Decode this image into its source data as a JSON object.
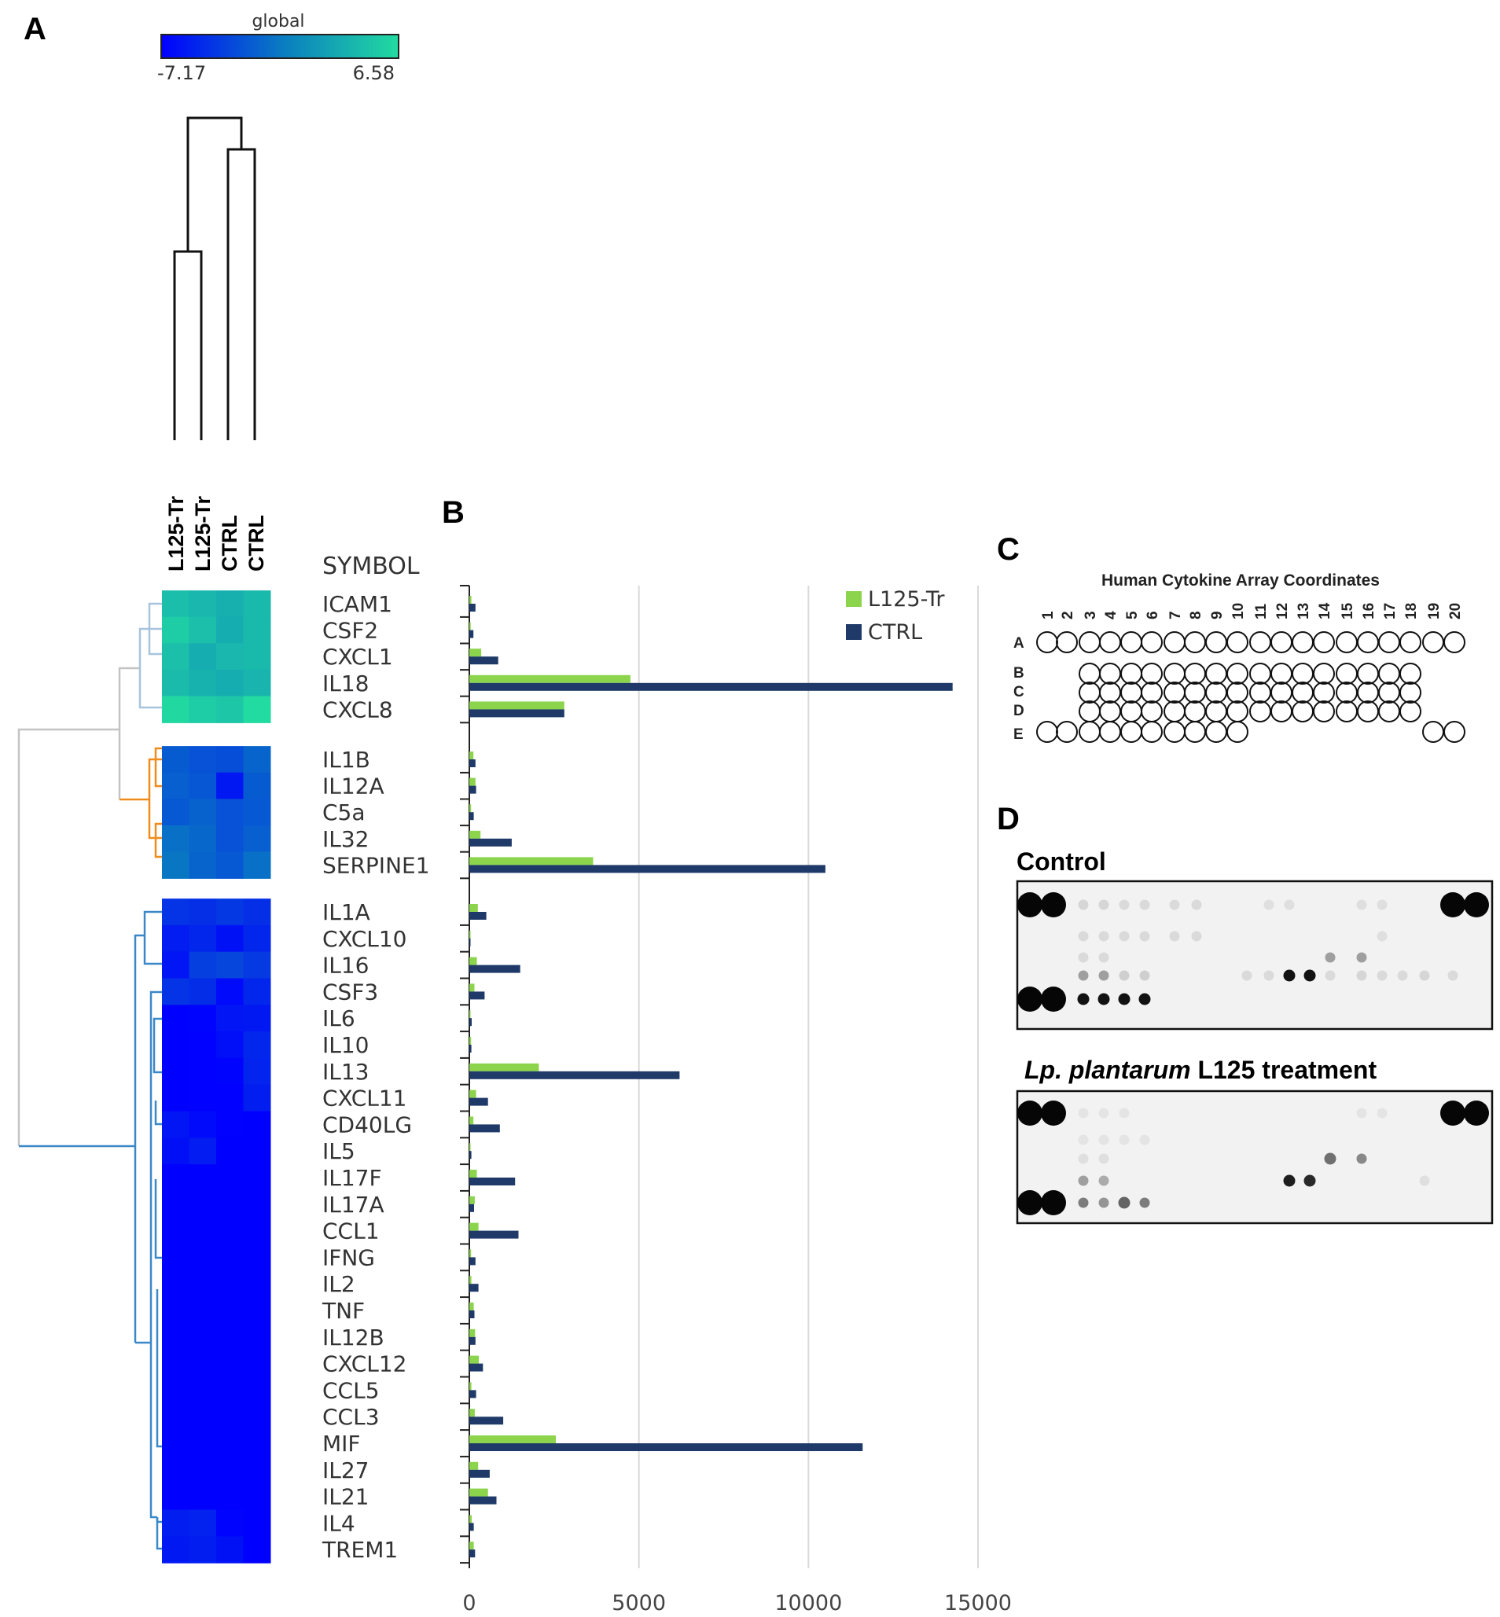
{
  "panels": {
    "A": "A",
    "B": "B",
    "C": "C",
    "D": "D"
  },
  "colors": {
    "low": "#0000ff",
    "mid": "#0a7ec0",
    "high": "#22dba0",
    "l125": "#8bd44b",
    "ctrl": "#1f3a68",
    "dendro_grey": "#c4c4c4",
    "dendro_lightblue": "#a8c4dc",
    "dendro_orange": "#f08c1c",
    "dendro_blue": "#3a88c8"
  },
  "heatmap": {
    "scale_title": "global",
    "scale_min": "-7.17",
    "scale_max": "6.58",
    "column_labels": [
      "L125-Tr",
      "L125-Tr",
      "CTRL",
      "CTRL"
    ],
    "symbol_header": "SYMBOL",
    "genes": [
      "ICAM1",
      "CSF2",
      "CXCL1",
      "IL18",
      "CXCL8",
      "IL1B",
      "IL12A",
      "C5a",
      "IL32",
      "SERPINE1",
      "IL1A",
      "CXCL10",
      "IL16",
      "CSF3",
      "IL6",
      "IL10",
      "IL13",
      "CXCL11",
      "CD40LG",
      "IL5",
      "IL17F",
      "IL17A",
      "CCL1",
      "IFNG",
      "IL2",
      "TNF",
      "IL12B",
      "CXCL12",
      "CCL5",
      "CCL3",
      "MIF",
      "IL27",
      "IL21",
      "IL4",
      "TREM1"
    ],
    "values": [
      [
        4.5,
        4.0,
        3.5,
        4.2
      ],
      [
        5.6,
        4.6,
        3.3,
        4.2
      ],
      [
        4.6,
        3.3,
        4.0,
        4.2
      ],
      [
        4.3,
        3.6,
        3.3,
        3.8
      ],
      [
        6.4,
        5.5,
        5.1,
        6.58
      ],
      [
        -2.0,
        -2.5,
        -2.8,
        -1.5
      ],
      [
        -1.8,
        -2.3,
        -5.8,
        -2.0
      ],
      [
        -2.2,
        -1.6,
        -2.5,
        -2.2
      ],
      [
        -0.8,
        -1.3,
        -2.5,
        -1.8
      ],
      [
        -0.5,
        -1.5,
        -2.2,
        -0.8
      ],
      [
        -4.2,
        -4.5,
        -4.0,
        -4.5
      ],
      [
        -5.6,
        -5.0,
        -6.2,
        -5.0
      ],
      [
        -6.0,
        -3.6,
        -3.2,
        -3.9
      ],
      [
        -4.2,
        -4.6,
        -6.6,
        -5.0
      ],
      [
        -7.17,
        -7.0,
        -6.0,
        -5.8
      ],
      [
        -7.17,
        -7.1,
        -6.4,
        -5.0
      ],
      [
        -7.17,
        -7.1,
        -7.0,
        -5.2
      ],
      [
        -7.17,
        -7.1,
        -7.1,
        -5.5
      ],
      [
        -6.0,
        -6.6,
        -7.1,
        -7.17
      ],
      [
        -6.3,
        -5.6,
        -7.17,
        -7.17
      ],
      [
        -7.17,
        -7.17,
        -7.17,
        -7.17
      ],
      [
        -7.17,
        -7.17,
        -7.17,
        -7.17
      ],
      [
        -7.17,
        -7.17,
        -7.17,
        -7.17
      ],
      [
        -7.17,
        -7.17,
        -7.17,
        -7.17
      ],
      [
        -7.17,
        -7.17,
        -7.17,
        -7.17
      ],
      [
        -7.17,
        -7.17,
        -7.17,
        -7.17
      ],
      [
        -7.17,
        -7.17,
        -7.17,
        -7.17
      ],
      [
        -7.17,
        -7.17,
        -7.17,
        -7.17
      ],
      [
        -7.17,
        -7.17,
        -7.17,
        -7.17
      ],
      [
        -7.17,
        -7.17,
        -7.17,
        -7.17
      ],
      [
        -7.17,
        -7.17,
        -7.17,
        -7.17
      ],
      [
        -7.17,
        -7.17,
        -7.17,
        -7.17
      ],
      [
        -7.17,
        -7.17,
        -7.17,
        -7.17
      ],
      [
        -5.5,
        -5.3,
        -7.0,
        -7.17
      ],
      [
        -5.8,
        -5.5,
        -6.2,
        -7.17
      ]
    ]
  },
  "chart_data": {
    "type": "bar",
    "orientation": "horizontal",
    "categories": [
      "ICAM1",
      "CSF2",
      "CXCL1",
      "IL18",
      "CXCL8",
      "IL1B",
      "IL12A",
      "C5a",
      "IL32",
      "SERPINE1",
      "IL1A",
      "CXCL10",
      "IL16",
      "CSF3",
      "IL6",
      "IL10",
      "IL13",
      "CXCL11",
      "CD40LG",
      "IL5",
      "IL17F",
      "IL17A",
      "CCL1",
      "IFNG",
      "IL2",
      "TNF",
      "IL12B",
      "CXCL12",
      "CCL5",
      "CCL3",
      "MIF",
      "IL27",
      "IL21",
      "IL4",
      "TREM1"
    ],
    "series": [
      {
        "name": "L125-Tr",
        "values": [
          60,
          40,
          350,
          4750,
          2800,
          120,
          180,
          50,
          330,
          3650,
          250,
          20,
          220,
          150,
          20,
          50,
          2050,
          200,
          120,
          30,
          220,
          160,
          270,
          50,
          60,
          130,
          170,
          280,
          60,
          160,
          2550,
          260,
          550,
          70,
          130
        ]
      },
      {
        "name": "CTRL",
        "values": [
          180,
          120,
          850,
          14250,
          2800,
          180,
          200,
          130,
          1250,
          10500,
          500,
          30,
          1500,
          450,
          70,
          60,
          6200,
          550,
          900,
          60,
          1350,
          140,
          1450,
          180,
          270,
          150,
          180,
          400,
          200,
          1000,
          11600,
          600,
          800,
          130,
          170
        ]
      }
    ],
    "xlim": [
      0,
      15000
    ],
    "xticks": [
      "0",
      "5000",
      "10000",
      "15000"
    ],
    "grid": true,
    "legend": "top-right"
  },
  "array": {
    "title": "Human Cytokine Array Coordinates",
    "columns": [
      "1",
      "2",
      "3",
      "4",
      "5",
      "6",
      "7",
      "8",
      "9",
      "10",
      "11",
      "12",
      "13",
      "14",
      "15",
      "16",
      "17",
      "18",
      "19",
      "20"
    ],
    "rows": [
      "A",
      "B",
      "C",
      "D",
      "E"
    ],
    "row_spots": [
      [
        1,
        2,
        3,
        4,
        5,
        6,
        7,
        8,
        9,
        10,
        11,
        12,
        13,
        14,
        15,
        16,
        17,
        18,
        19,
        20
      ],
      [
        3,
        4,
        5,
        6,
        7,
        8,
        9,
        10,
        11,
        12,
        13,
        14,
        15,
        16,
        17,
        18
      ],
      [
        3,
        4,
        5,
        6,
        7,
        8,
        9,
        10,
        11,
        12,
        13,
        14,
        15,
        16,
        17,
        18
      ],
      [
        3,
        4,
        5,
        6,
        7,
        8,
        9,
        10,
        11,
        12,
        13,
        14,
        15,
        16,
        17,
        18
      ],
      [
        1,
        2,
        3,
        4,
        5,
        6,
        7,
        8,
        9,
        10,
        19,
        20
      ]
    ]
  },
  "blots": {
    "control_label": "Control",
    "treatment_label_italic": "Lp. plantarum",
    "treatment_label_rest": " L125 treatment",
    "control_spots": [
      {
        "row": "A",
        "col": 1,
        "i": 1.0
      },
      {
        "row": "A",
        "col": 2,
        "i": 1.0
      },
      {
        "row": "A",
        "col": 19,
        "i": 1.0
      },
      {
        "row": "A",
        "col": 20,
        "i": 1.0
      },
      {
        "row": "A",
        "col": 3,
        "i": 0.12
      },
      {
        "row": "A",
        "col": 4,
        "i": 0.12
      },
      {
        "row": "A",
        "col": 5,
        "i": 0.1
      },
      {
        "row": "A",
        "col": 6,
        "i": 0.1
      },
      {
        "row": "A",
        "col": 7,
        "i": 0.1
      },
      {
        "row": "A",
        "col": 8,
        "i": 0.1
      },
      {
        "row": "A",
        "col": 11,
        "i": 0.08
      },
      {
        "row": "A",
        "col": 12,
        "i": 0.08
      },
      {
        "row": "A",
        "col": 15,
        "i": 0.08
      },
      {
        "row": "A",
        "col": 16,
        "i": 0.08
      },
      {
        "row": "B",
        "col": 3,
        "i": 0.1
      },
      {
        "row": "B",
        "col": 4,
        "i": 0.1
      },
      {
        "row": "B",
        "col": 5,
        "i": 0.1
      },
      {
        "row": "B",
        "col": 6,
        "i": 0.1
      },
      {
        "row": "B",
        "col": 7,
        "i": 0.1
      },
      {
        "row": "B",
        "col": 8,
        "i": 0.1
      },
      {
        "row": "B",
        "col": 16,
        "i": 0.08
      },
      {
        "row": "C",
        "col": 3,
        "i": 0.1
      },
      {
        "row": "C",
        "col": 4,
        "i": 0.1
      },
      {
        "row": "C",
        "col": 14,
        "i": 0.35
      },
      {
        "row": "C",
        "col": 15,
        "i": 0.35
      },
      {
        "row": "D",
        "col": 3,
        "i": 0.35
      },
      {
        "row": "D",
        "col": 4,
        "i": 0.35
      },
      {
        "row": "D",
        "col": 5,
        "i": 0.15
      },
      {
        "row": "D",
        "col": 6,
        "i": 0.15
      },
      {
        "row": "D",
        "col": 10,
        "i": 0.1
      },
      {
        "row": "D",
        "col": 11,
        "i": 0.1
      },
      {
        "row": "D",
        "col": 12,
        "i": 0.95
      },
      {
        "row": "D",
        "col": 13,
        "i": 0.95
      },
      {
        "row": "D",
        "col": 14,
        "i": 0.1
      },
      {
        "row": "D",
        "col": 15,
        "i": 0.12
      },
      {
        "row": "D",
        "col": 16,
        "i": 0.1
      },
      {
        "row": "D",
        "col": 17,
        "i": 0.1
      },
      {
        "row": "D",
        "col": 18,
        "i": 0.12
      },
      {
        "row": "D",
        "col": 19,
        "i": 0.1
      },
      {
        "row": "E",
        "col": 1,
        "i": 1.0
      },
      {
        "row": "E",
        "col": 2,
        "i": 1.0
      },
      {
        "row": "E",
        "col": 3,
        "i": 0.95
      },
      {
        "row": "E",
        "col": 4,
        "i": 0.95
      },
      {
        "row": "E",
        "col": 5,
        "i": 0.95
      },
      {
        "row": "E",
        "col": 6,
        "i": 0.95
      }
    ],
    "treatment_spots": [
      {
        "row": "A",
        "col": 1,
        "i": 1.0
      },
      {
        "row": "A",
        "col": 2,
        "i": 1.0
      },
      {
        "row": "A",
        "col": 19,
        "i": 1.0
      },
      {
        "row": "A",
        "col": 20,
        "i": 1.0
      },
      {
        "row": "A",
        "col": 3,
        "i": 0.06
      },
      {
        "row": "A",
        "col": 4,
        "i": 0.06
      },
      {
        "row": "A",
        "col": 5,
        "i": 0.06
      },
      {
        "row": "A",
        "col": 15,
        "i": 0.06
      },
      {
        "row": "A",
        "col": 16,
        "i": 0.06
      },
      {
        "row": "B",
        "col": 3,
        "i": 0.06
      },
      {
        "row": "B",
        "col": 4,
        "i": 0.06
      },
      {
        "row": "B",
        "col": 5,
        "i": 0.06
      },
      {
        "row": "B",
        "col": 6,
        "i": 0.06
      },
      {
        "row": "C",
        "col": 3,
        "i": 0.08
      },
      {
        "row": "C",
        "col": 4,
        "i": 0.08
      },
      {
        "row": "C",
        "col": 14,
        "i": 0.55
      },
      {
        "row": "C",
        "col": 15,
        "i": 0.45
      },
      {
        "row": "D",
        "col": 3,
        "i": 0.35
      },
      {
        "row": "D",
        "col": 4,
        "i": 0.3
      },
      {
        "row": "D",
        "col": 12,
        "i": 0.9
      },
      {
        "row": "D",
        "col": 13,
        "i": 0.85
      },
      {
        "row": "D",
        "col": 18,
        "i": 0.08
      },
      {
        "row": "E",
        "col": 1,
        "i": 1.0
      },
      {
        "row": "E",
        "col": 2,
        "i": 1.0
      },
      {
        "row": "E",
        "col": 3,
        "i": 0.5
      },
      {
        "row": "E",
        "col": 4,
        "i": 0.4
      },
      {
        "row": "E",
        "col": 5,
        "i": 0.6
      },
      {
        "row": "E",
        "col": 6,
        "i": 0.5
      }
    ]
  }
}
